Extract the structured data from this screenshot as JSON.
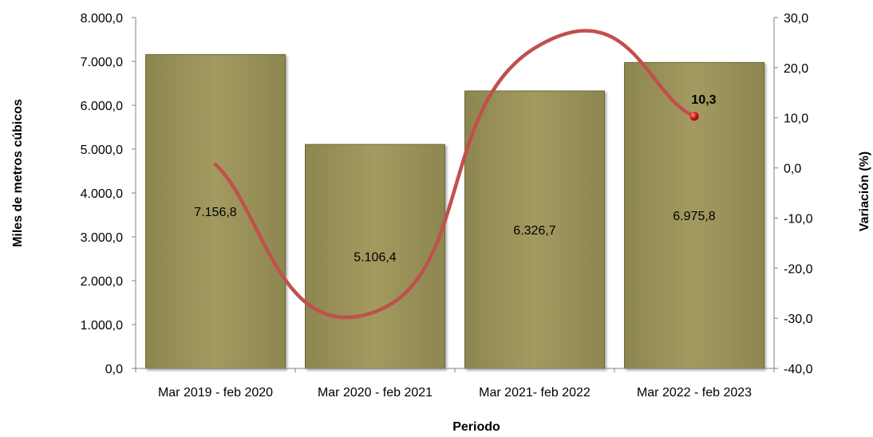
{
  "chart_data": {
    "type": "bar",
    "categories": [
      "Mar 2019 - feb 2020",
      "Mar 2020 - feb 2021",
      "Mar 2021- feb 2022",
      "Mar 2022 - feb 2023"
    ],
    "bar_values": [
      7156.8,
      5106.4,
      6326.7,
      6975.8
    ],
    "bar_value_labels": [
      "7.156,8",
      "5.106,4",
      "6.326,7",
      "6.975,8"
    ],
    "line_series": {
      "type": "line",
      "axis": "right",
      "values": [
        0.7,
        -28.7,
        23.9,
        10.3
      ],
      "smooth": true,
      "highlighted_point": {
        "index": 3,
        "label": "10,3"
      }
    },
    "xlabel": "Periodo",
    "ylabel": "Miles de metros cúbicos",
    "y2label": "Variación (%)",
    "ylim": [
      0,
      8000
    ],
    "y2lim": [
      -40,
      30
    ],
    "yticks": [
      "0,0",
      "1.000,0",
      "2.000,0",
      "3.000,0",
      "4.000,0",
      "5.000,0",
      "6.000,0",
      "7.000,0",
      "8.000,0"
    ],
    "y2ticks": [
      "-40,0",
      "-30,0",
      "-20,0",
      "-10,0",
      "0,0",
      "10,0",
      "20,0",
      "30,0"
    ],
    "grid": false,
    "legend": "none",
    "colors": {
      "bar_fill": "#9b9258",
      "bar_fill_light": "#aaa066",
      "bar_edge": "#6e6838",
      "line": "#c0504d",
      "marker": "#d21414",
      "axis": "#808080"
    }
  }
}
